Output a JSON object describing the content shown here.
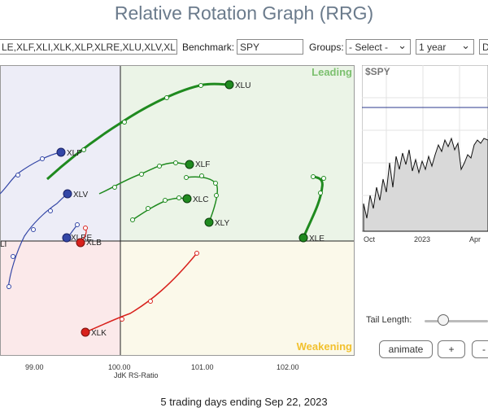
{
  "page": {
    "title": "Relative Rotation Graph (RRG)"
  },
  "controls": {
    "symbols_value": "LE,XLF,XLI,XLK,XLP,XLRE,XLU,XLV,XL",
    "benchmark_label": "Benchmark:",
    "benchmark_value": "SPY",
    "groups_label": "Groups:",
    "groups_value": "- Select -",
    "period_value": "1 year",
    "extra_value": "D"
  },
  "rrg": {
    "quadrants": {
      "leading": "Leading",
      "weakening": "Weakening"
    },
    "x_ticks": [
      "99.00",
      "100.00",
      "101.00",
      "102.00"
    ],
    "x_axis_title": "JdK RS-Ratio",
    "colors": {
      "leading_bg": "#ebf4e7",
      "weakening_bg": "#fbf9ea",
      "lagging_bg": "#fbe9ea",
      "improving_bg": "#ededf7",
      "green": "#1f8a1f",
      "blue": "#3346a6",
      "red": "#d8211c",
      "leading_text": "#7cc06f",
      "weakening_text": "#f2c12e"
    },
    "series": [
      {
        "symbol": "XLU",
        "color": "green"
      },
      {
        "symbol": "XLF",
        "color": "green"
      },
      {
        "symbol": "XLC",
        "color": "green"
      },
      {
        "symbol": "XLY",
        "color": "green"
      },
      {
        "symbol": "XLE",
        "color": "green"
      },
      {
        "symbol": "XLP",
        "color": "blue"
      },
      {
        "symbol": "XLV",
        "color": "blue"
      },
      {
        "symbol": "XLRE",
        "color": "blue"
      },
      {
        "symbol": "XLB",
        "color": "red"
      },
      {
        "symbol": "XLK",
        "color": "red"
      },
      {
        "symbol": "LI",
        "color": "blue"
      }
    ]
  },
  "price_chart": {
    "symbol": "$SPY",
    "x_ticks": [
      "Oct",
      "2023",
      "Apr"
    ]
  },
  "tail": {
    "label": "Tail Length:"
  },
  "buttons": {
    "animate": "animate",
    "plus": "+",
    "minus": "-"
  },
  "footer": "5 trading days ending Sep 22, 2023"
}
